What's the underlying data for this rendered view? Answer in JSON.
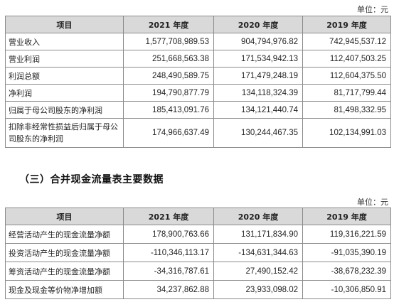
{
  "unit_label_1": "单位：元",
  "unit_label_2": "单位：元",
  "section_title": "（三）合并现金流量表主要数据",
  "table1": {
    "headers": [
      "项目",
      "2021 年度",
      "2020 年度",
      "2019 年度"
    ],
    "rows": [
      [
        "营业收入",
        "1,577,708,989.53",
        "904,794,976.82",
        "742,945,537.12"
      ],
      [
        "营业利润",
        "251,668,563.38",
        "171,534,942.13",
        "112,407,503.25"
      ],
      [
        "利润总额",
        "248,490,589.75",
        "171,479,248.19",
        "112,604,375.50"
      ],
      [
        "净利润",
        "194,790,877.79",
        "134,118,324.39",
        "81,717,799.44"
      ],
      [
        "归属于母公司股东的净利润",
        "185,413,091.76",
        "134,121,440.74",
        "81,498,332.95"
      ],
      [
        "扣除非经常性损益后归属于母公司股东的净利润",
        "174,966,637.49",
        "130,244,467.35",
        "102,134,991.03"
      ]
    ]
  },
  "table2": {
    "headers": [
      "项目",
      "2021 年度",
      "2020 年度",
      "2019 年度"
    ],
    "rows": [
      [
        "经营活动产生的现金流量净额",
        "178,900,763.66",
        "131,171,834.90",
        "119,316,221.59"
      ],
      [
        "投资活动产生的现金流量净额",
        "-110,346,113.17",
        "-134,631,344.63",
        "-91,035,390.19"
      ],
      [
        "筹资活动产生的现金流量净额",
        "-34,316,787.61",
        "27,490,152.42",
        "-38,678,232.39"
      ],
      [
        "现金及现金等价物净增加额",
        "34,237,862.88",
        "23,933,098.02",
        "-10,306,850.91"
      ]
    ]
  }
}
